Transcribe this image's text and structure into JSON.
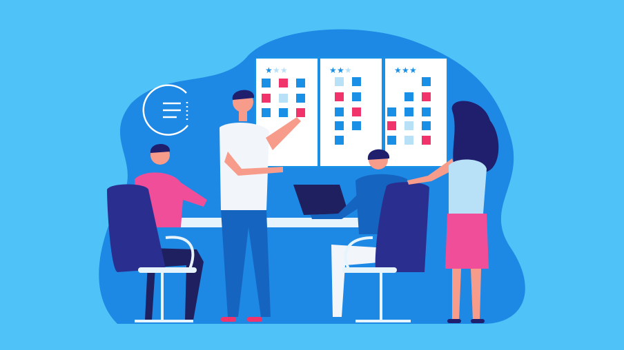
{
  "colors": {
    "background": "#4fc3f7",
    "blob": "#1e88e5",
    "board": "#ffffff",
    "square_blue": "#1a8fe6",
    "square_pink": "#f0336b",
    "square_light": "#b8e0f7",
    "star_on": "#1a8fe6",
    "star_off": "#b8e0f7",
    "chair": "#2a2f8f",
    "skin": "#f79b8a",
    "hair": "#1f1f6e"
  },
  "boards": [
    {
      "stars": 1,
      "columns": [
        [
          "B",
          "P",
          "B"
        ],
        [
          "P",
          "L",
          "B"
        ],
        [
          "B",
          "B",
          "P"
        ]
      ]
    },
    {
      "stars": 2,
      "columns": [
        [
          "L",
          "P",
          "B",
          "B",
          "B"
        ],
        [
          "B",
          "B",
          "P",
          "B"
        ]
      ]
    },
    {
      "stars": 3,
      "columns": [
        [
          "",
          "",
          "B",
          "P",
          "B"
        ],
        [
          "",
          "B",
          "B",
          "L",
          "L"
        ],
        [
          "B",
          "P",
          "B",
          "B",
          "P"
        ]
      ]
    }
  ]
}
